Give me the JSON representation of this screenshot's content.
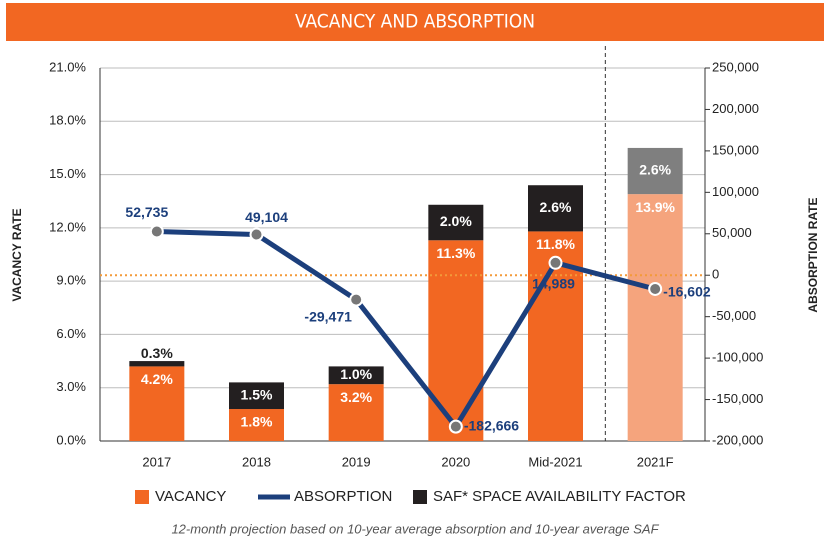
{
  "chart_data": {
    "type": "bar_line",
    "title": "VACANCY AND ABSORPTION",
    "y_label": "VACANCY RATE",
    "y2_label": "ABSORPTION RATE",
    "footnote": "12-month projection based on 10-year average absorption and 10-year average SAF",
    "categories": [
      "2017",
      "2018",
      "2019",
      "2020",
      "Mid-2021",
      "2021F"
    ],
    "series": [
      {
        "name": "VACANCY",
        "type": "bar",
        "color": "#f26722",
        "colors": [
          "#f26722",
          "#f26722",
          "#f26722",
          "#f26722",
          "#f26722",
          "#f5a47d"
        ],
        "values": [
          4.2,
          1.8,
          3.2,
          11.3,
          11.8,
          13.9
        ],
        "value_labels": [
          "4.2%",
          "1.8%",
          "3.2%",
          "11.3%",
          "11.8%",
          "13.9%"
        ]
      },
      {
        "name": "ABSORPTION",
        "type": "line",
        "axis": "y2",
        "color": "#1c3f7c",
        "values": [
          52735,
          49104,
          -29471,
          -182666,
          14989,
          -16602
        ],
        "value_labels": [
          "52,735",
          "49,104",
          "-29,471",
          "-182,666",
          "14,989",
          "-16,602"
        ]
      },
      {
        "name": "SAF* SPACE AVAILABILITY FACTOR",
        "type": "bar",
        "color": "#231f20",
        "colors": [
          "#231f20",
          "#231f20",
          "#231f20",
          "#231f20",
          "#231f20",
          "#7f7f7f"
        ],
        "values": [
          0.3,
          1.5,
          1.0,
          2.0,
          2.6,
          2.6
        ],
        "value_labels": [
          "0.3%",
          "1.5%",
          "1.0%",
          "2.0%",
          "2.6%",
          "2.6%"
        ]
      }
    ],
    "ylim": [
      0,
      21
    ],
    "yticks": [
      {
        "value": 0,
        "label": "0.0%"
      },
      {
        "value": 3,
        "label": "3.0%"
      },
      {
        "value": 6,
        "label": "6.0%"
      },
      {
        "value": 9,
        "label": "9.0%"
      },
      {
        "value": 12,
        "label": "12.0%"
      },
      {
        "value": 15,
        "label": "15.0%"
      },
      {
        "value": 18,
        "label": "18.0%"
      },
      {
        "value": 21,
        "label": "21.0%"
      }
    ],
    "y2lim": [
      -200000,
      250000
    ],
    "y2ticks": [
      {
        "value": -200000,
        "label": "-200,000"
      },
      {
        "value": -150000,
        "label": "-150,000"
      },
      {
        "value": -100000,
        "label": "-100,000"
      },
      {
        "value": -50000,
        "label": "-50,000"
      },
      0,
      {
        "value": 50000,
        "label": "50,000"
      },
      {
        "value": 100000,
        "label": "100,000"
      },
      {
        "value": 150000,
        "label": "150,000"
      },
      {
        "value": 200000,
        "label": "200,000"
      },
      {
        "value": 250000,
        "label": "250,000"
      }
    ],
    "y2_reference": 0,
    "grid": true
  }
}
